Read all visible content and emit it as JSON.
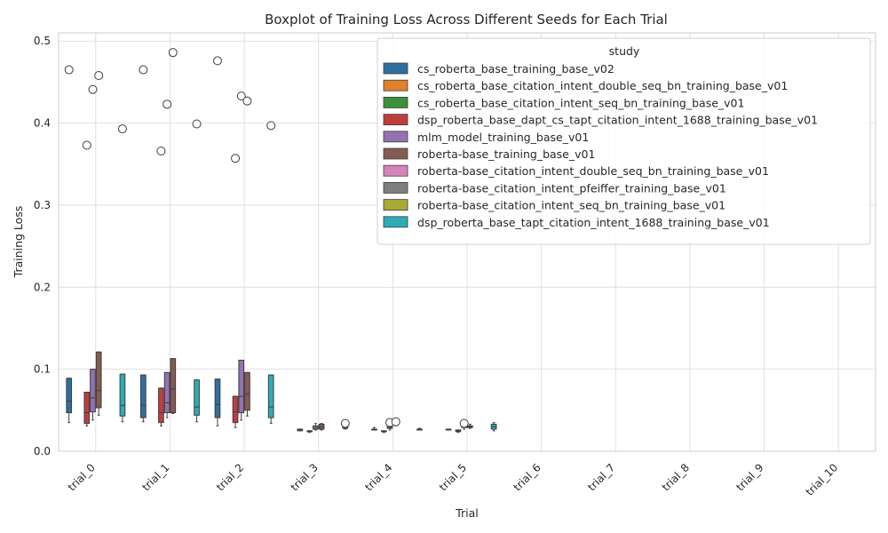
{
  "chart_data": {
    "type": "box",
    "title": "Boxplot of Training Loss Across Different Seeds for Each Trial",
    "xlabel": "Trial",
    "ylabel": "Training Loss",
    "ylim": [
      0,
      0.51
    ],
    "yticks": [
      "0.0",
      "0.1",
      "0.2",
      "0.3",
      "0.4",
      "0.5"
    ],
    "ytick_values": [
      0,
      0.1,
      0.2,
      0.3,
      0.4,
      0.5
    ],
    "grid": true,
    "legend_title": "study",
    "legend_position": "top-right",
    "categories": [
      "trial_0",
      "trial_1",
      "trial_2",
      "trial_3",
      "trial_4",
      "trial_5",
      "trial_6",
      "trial_7",
      "trial_8",
      "trial_9",
      "trial_10"
    ],
    "series": [
      {
        "name": "cs_roberta_base_training_base_v02",
        "color": "#2f6f9e",
        "boxes": [
          {
            "trial": 0,
            "whislo": 0.035,
            "q1": 0.047,
            "med": 0.061,
            "q3": 0.089,
            "whishi": 0.089,
            "fliers": [
              0.465
            ]
          },
          {
            "trial": 1,
            "whislo": 0.036,
            "q1": 0.041,
            "med": 0.056,
            "q3": 0.093,
            "whishi": 0.093,
            "fliers": [
              0.465
            ]
          },
          {
            "trial": 2,
            "whislo": 0.031,
            "q1": 0.041,
            "med": 0.057,
            "q3": 0.088,
            "whishi": 0.088,
            "fliers": [
              0.476
            ]
          }
        ]
      },
      {
        "name": "cs_roberta_base_citation_intent_double_seq_bn_training_base_v01",
        "color": "#e1812c",
        "boxes": []
      },
      {
        "name": "cs_roberta_base_citation_intent_seq_bn_training_base_v01",
        "color": "#3a923a",
        "boxes": []
      },
      {
        "name": "dsp_roberta_base_dapt_cs_tapt_citation_intent_1688_training_base_v01",
        "color": "#c03d3e",
        "boxes": [
          {
            "trial": 0,
            "whislo": 0.031,
            "q1": 0.034,
            "med": 0.047,
            "q3": 0.072,
            "whishi": 0.072,
            "fliers": [
              0.373
            ]
          },
          {
            "trial": 1,
            "whislo": 0.031,
            "q1": 0.035,
            "med": 0.047,
            "q3": 0.077,
            "whishi": 0.077,
            "fliers": [
              0.366
            ]
          },
          {
            "trial": 2,
            "whislo": 0.029,
            "q1": 0.035,
            "med": 0.048,
            "q3": 0.067,
            "whishi": 0.067,
            "fliers": [
              0.357
            ]
          },
          {
            "trial": 3,
            "whislo": 0.023,
            "q1": 0.024,
            "med": 0.024,
            "q3": 0.025,
            "whishi": 0.025,
            "fliers": []
          },
          {
            "trial": 4,
            "whislo": 0.023,
            "q1": 0.024,
            "med": 0.024,
            "q3": 0.025,
            "whishi": 0.025,
            "fliers": []
          },
          {
            "trial": 5,
            "whislo": 0.023,
            "q1": 0.024,
            "med": 0.025,
            "q3": 0.026,
            "whishi": 0.026,
            "fliers": []
          }
        ]
      },
      {
        "name": "mlm_model_training_base_v01",
        "color": "#9372b2",
        "boxes": [
          {
            "trial": 0,
            "whislo": 0.038,
            "q1": 0.048,
            "med": 0.065,
            "q3": 0.1,
            "whishi": 0.1,
            "fliers": [
              0.441
            ]
          },
          {
            "trial": 1,
            "whislo": 0.041,
            "q1": 0.047,
            "med": 0.059,
            "q3": 0.096,
            "whishi": 0.096,
            "fliers": [
              0.423
            ]
          },
          {
            "trial": 2,
            "whislo": 0.038,
            "q1": 0.047,
            "med": 0.067,
            "q3": 0.111,
            "whishi": 0.111,
            "fliers": [
              0.433
            ]
          },
          {
            "trial": 3,
            "whislo": 0.026,
            "q1": 0.027,
            "med": 0.029,
            "q3": 0.031,
            "whishi": 0.034,
            "fliers": []
          },
          {
            "trial": 4,
            "whislo": 0.026,
            "q1": 0.028,
            "med": 0.029,
            "q3": 0.031,
            "whishi": 0.032,
            "fliers": [
              0.035
            ]
          },
          {
            "trial": 5,
            "whislo": 0.027,
            "q1": 0.029,
            "med": 0.03,
            "q3": 0.032,
            "whishi": 0.033,
            "fliers": [
              0.034
            ]
          }
        ]
      },
      {
        "name": "roberta-base_training_base_v01",
        "color": "#845b53",
        "boxes": [
          {
            "trial": 0,
            "whislo": 0.044,
            "q1": 0.053,
            "med": 0.074,
            "q3": 0.121,
            "whishi": 0.121,
            "fliers": [
              0.458
            ]
          },
          {
            "trial": 1,
            "whislo": 0.046,
            "q1": 0.047,
            "med": 0.076,
            "q3": 0.113,
            "whishi": 0.113,
            "fliers": [
              0.486
            ]
          },
          {
            "trial": 2,
            "whislo": 0.043,
            "q1": 0.05,
            "med": 0.07,
            "q3": 0.096,
            "whishi": 0.096,
            "fliers": [
              0.427
            ]
          },
          {
            "trial": 3,
            "whislo": 0.026,
            "q1": 0.027,
            "med": 0.03,
            "q3": 0.033,
            "whishi": 0.034,
            "fliers": []
          },
          {
            "trial": 4,
            "whislo": 0.031,
            "q1": 0.032,
            "med": 0.033,
            "q3": 0.034,
            "whishi": 0.035,
            "fliers": [
              0.036
            ]
          },
          {
            "trial": 5,
            "whislo": 0.028,
            "q1": 0.029,
            "med": 0.03,
            "q3": 0.031,
            "whishi": 0.033,
            "fliers": []
          }
        ]
      },
      {
        "name": "roberta-base_citation_intent_double_seq_bn_training_base_v01",
        "color": "#d684bd",
        "boxes": []
      },
      {
        "name": "roberta-base_citation_intent_pfeiffer_training_base_v01",
        "color": "#7f7f7f",
        "boxes": []
      },
      {
        "name": "roberta-base_citation_intent_seq_bn_training_base_v01",
        "color": "#a9aa35",
        "boxes": []
      },
      {
        "name": "dsp_roberta_base_tapt_citation_intent_1688_training_base_v01",
        "color": "#2eabb8",
        "boxes": [
          {
            "trial": 0,
            "whislo": 0.036,
            "q1": 0.043,
            "med": 0.056,
            "q3": 0.094,
            "whishi": 0.094,
            "fliers": [
              0.393
            ]
          },
          {
            "trial": 1,
            "whislo": 0.036,
            "q1": 0.044,
            "med": 0.054,
            "q3": 0.087,
            "whishi": 0.087,
            "fliers": [
              0.399
            ]
          },
          {
            "trial": 2,
            "whislo": 0.034,
            "q1": 0.041,
            "med": 0.054,
            "q3": 0.093,
            "whishi": 0.093,
            "fliers": [
              0.397
            ]
          },
          {
            "trial": 3,
            "whislo": 0.027,
            "q1": 0.028,
            "med": 0.029,
            "q3": 0.03,
            "whishi": 0.03,
            "fliers": [
              0.034
            ]
          },
          {
            "trial": 4,
            "whislo": 0.026,
            "q1": 0.026,
            "med": 0.027,
            "q3": 0.027,
            "whishi": 0.028,
            "fliers": []
          },
          {
            "trial": 5,
            "whislo": 0.025,
            "q1": 0.027,
            "med": 0.03,
            "q3": 0.033,
            "whishi": 0.035,
            "fliers": []
          }
        ]
      }
    ],
    "extra_trial_boxes": [
      {
        "trial": 3,
        "color": "#2f6f9e",
        "whislo": 0.025,
        "q1": 0.025,
        "med": 0.026,
        "q3": 0.027,
        "whishi": 0.027
      },
      {
        "trial": 4,
        "color": "#2f6f9e",
        "whislo": 0.026,
        "q1": 0.026,
        "med": 0.027,
        "q3": 0.027,
        "whishi": 0.029
      },
      {
        "trial": 5,
        "color": "#2f6f9e",
        "whislo": 0.026,
        "q1": 0.026,
        "med": 0.026,
        "q3": 0.027,
        "whishi": 0.027
      }
    ]
  }
}
